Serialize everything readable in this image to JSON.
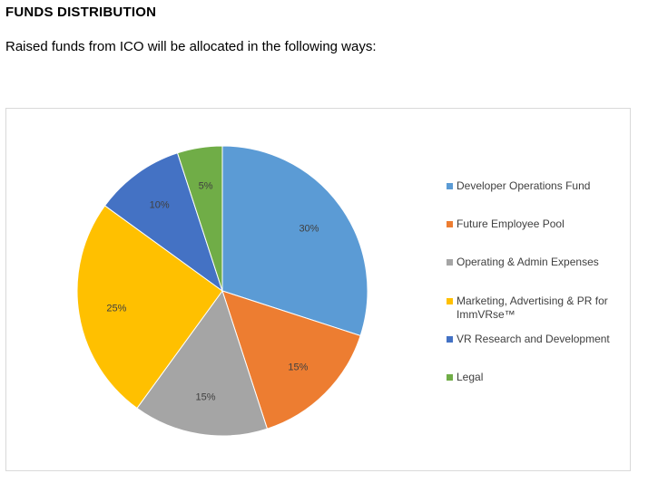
{
  "page": {
    "heading": "FUNDS DISTRIBUTION",
    "intro": "Raised funds from ICO will be allocated in the following ways:"
  },
  "chart_data": {
    "type": "pie",
    "title": "",
    "slices": [
      {
        "label": "Developer Operations Fund",
        "value": 30,
        "display": "30%",
        "color": "#5b9bd5"
      },
      {
        "label": "Future Employee Pool",
        "value": 15,
        "display": "15%",
        "color": "#ed7d31"
      },
      {
        "label": "Operating & Admin Expenses",
        "value": 15,
        "display": "15%",
        "color": "#a5a5a5"
      },
      {
        "label": "Marketing, Advertising & PR for ImmVRse™",
        "value": 25,
        "display": "25%",
        "color": "#ffc000"
      },
      {
        "label": "VR Research and Development",
        "value": 10,
        "display": "10%",
        "color": "#4472c4"
      },
      {
        "label": "Legal",
        "value": 5,
        "display": "5%",
        "color": "#70ad47"
      }
    ],
    "legend_position": "right"
  }
}
